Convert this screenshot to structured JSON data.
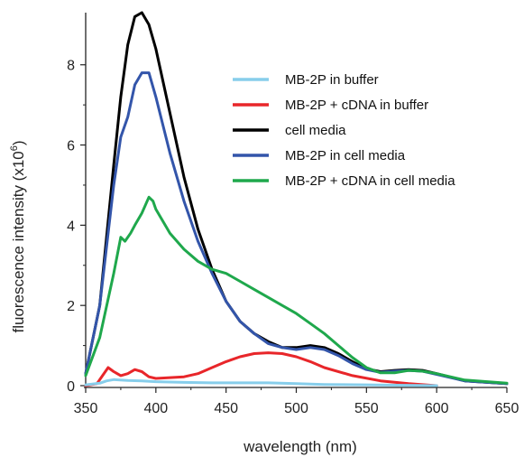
{
  "chart_data": {
    "type": "line",
    "xlabel": "wavelength (nm)",
    "ylabel": "fluorescence intensity (x10",
    "ylabel_exponent": "6",
    "ylabel_close": ")",
    "xlim": [
      350,
      650
    ],
    "ylim": [
      0,
      9.3
    ],
    "xticks": [
      350,
      400,
      450,
      500,
      550,
      600,
      650
    ],
    "yticks": [
      0,
      2,
      4,
      6,
      8
    ],
    "grid": false,
    "legend_position": "top-right",
    "series": [
      {
        "name": "MB-2P in buffer",
        "color": "#87CEEB",
        "x": [
          350,
          360,
          365,
          370,
          380,
          390,
          400,
          420,
          440,
          460,
          480,
          500,
          520,
          550,
          580,
          600
        ],
        "y": [
          0.02,
          0.06,
          0.12,
          0.15,
          0.13,
          0.12,
          0.1,
          0.08,
          0.07,
          0.07,
          0.07,
          0.05,
          0.03,
          0.02,
          0.01,
          0.0
        ]
      },
      {
        "name": "MB-2P + cDNA in buffer",
        "color": "#E8262A",
        "x": [
          350,
          358,
          362,
          366,
          370,
          375,
          380,
          385,
          390,
          395,
          400,
          410,
          420,
          430,
          440,
          450,
          460,
          470,
          480,
          490,
          500,
          510,
          520,
          540,
          560,
          580,
          600
        ],
        "y": [
          0.0,
          0.05,
          0.25,
          0.45,
          0.35,
          0.25,
          0.3,
          0.4,
          0.35,
          0.22,
          0.18,
          0.2,
          0.22,
          0.3,
          0.45,
          0.6,
          0.72,
          0.8,
          0.82,
          0.8,
          0.72,
          0.6,
          0.45,
          0.25,
          0.12,
          0.05,
          0.0
        ]
      },
      {
        "name": "cell media",
        "color": "#000000",
        "x": [
          350,
          360,
          370,
          375,
          380,
          385,
          390,
          395,
          400,
          410,
          420,
          430,
          440,
          450,
          460,
          470,
          480,
          490,
          500,
          510,
          520,
          530,
          540,
          550,
          560,
          570,
          580,
          590,
          600,
          620,
          650
        ],
        "y": [
          0.3,
          2.0,
          5.5,
          7.2,
          8.5,
          9.2,
          9.3,
          9.0,
          8.4,
          6.8,
          5.2,
          3.9,
          2.9,
          2.1,
          1.6,
          1.3,
          1.1,
          0.95,
          0.95,
          1.0,
          0.95,
          0.8,
          0.6,
          0.42,
          0.35,
          0.38,
          0.4,
          0.38,
          0.3,
          0.12,
          0.05
        ]
      },
      {
        "name": "MB-2P in cell media",
        "color": "#3355AA",
        "x": [
          350,
          360,
          370,
          375,
          380,
          385,
          390,
          395,
          400,
          410,
          420,
          430,
          440,
          450,
          460,
          470,
          480,
          490,
          500,
          510,
          520,
          530,
          540,
          550,
          560,
          570,
          580,
          590,
          600,
          620,
          650
        ],
        "y": [
          0.3,
          2.0,
          5.0,
          6.2,
          6.7,
          7.5,
          7.8,
          7.8,
          7.2,
          5.8,
          4.6,
          3.6,
          2.8,
          2.1,
          1.6,
          1.3,
          1.05,
          0.95,
          0.9,
          0.95,
          0.9,
          0.75,
          0.55,
          0.4,
          0.33,
          0.36,
          0.38,
          0.36,
          0.28,
          0.12,
          0.05
        ]
      },
      {
        "name": "MB-2P + cDNA in cell media",
        "color": "#1FA84C",
        "x": [
          350,
          360,
          370,
          375,
          378,
          382,
          385,
          390,
          395,
          398,
          400,
          410,
          420,
          430,
          440,
          450,
          460,
          470,
          480,
          490,
          500,
          510,
          520,
          530,
          540,
          550,
          560,
          570,
          580,
          590,
          600,
          620,
          650
        ],
        "y": [
          0.25,
          1.2,
          2.8,
          3.7,
          3.6,
          3.8,
          4.0,
          4.3,
          4.7,
          4.6,
          4.4,
          3.8,
          3.4,
          3.1,
          2.9,
          2.8,
          2.6,
          2.4,
          2.2,
          2.0,
          1.8,
          1.55,
          1.3,
          1.0,
          0.7,
          0.45,
          0.32,
          0.32,
          0.38,
          0.36,
          0.3,
          0.14,
          0.06
        ]
      }
    ]
  }
}
